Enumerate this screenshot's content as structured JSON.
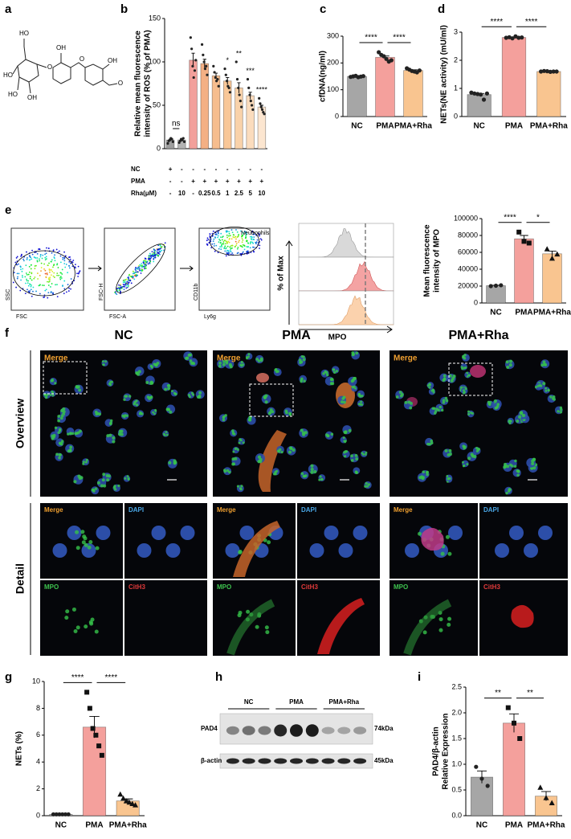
{
  "panel_labels": [
    "a",
    "b",
    "c",
    "d",
    "e",
    "f",
    "g",
    "h",
    "i"
  ],
  "structure": {
    "atoms": [
      "HO",
      "HO",
      "HO",
      "OH",
      "O",
      "OH",
      "O",
      "OH",
      "O"
    ]
  },
  "flow": {
    "plots": [
      {
        "x_label": "FSC",
        "y_label": "SSC"
      },
      {
        "x_label": "FSC-A",
        "y_label": "FSC-H"
      },
      {
        "x_label": "Ly6g",
        "y_label": "CD11b",
        "gate_label": "Neutrophils"
      }
    ],
    "histogram": {
      "x_label": "MPO",
      "y_label": "% of Max"
    }
  },
  "imaging": {
    "columns": [
      "NC",
      "PMA",
      "PMA+Rha"
    ],
    "rows": [
      "Overview",
      "Detail"
    ],
    "overview_label": "Merge",
    "detail_labels": [
      "Merge",
      "DAPI",
      "MPO",
      "CitH3"
    ]
  },
  "western": {
    "groups": [
      "NC",
      "PMA",
      "PMA+Rha"
    ],
    "proteins": [
      "PAD4",
      "β-actin"
    ],
    "sizes": [
      "74kDa",
      "45kDa"
    ]
  },
  "chart_data": [
    {
      "type": "bar",
      "ylabel": [
        "Relative mean fluorescence",
        "intensity of ROS (% of PMA)"
      ],
      "categories": [
        null,
        null,
        null,
        null,
        null,
        null,
        null,
        null,
        null
      ],
      "values": [
        10,
        10,
        102,
        98,
        84,
        78,
        70,
        61,
        48
      ],
      "errors": [
        1,
        1,
        8,
        5,
        3,
        4,
        6,
        4,
        2
      ],
      "points": [
        [
          6,
          9,
          10,
          12,
          11,
          8
        ],
        [
          7,
          9,
          11,
          10,
          12,
          8
        ],
        [
          128,
          115,
          95,
          82,
          90,
          102
        ],
        [
          120,
          108,
          100,
          92,
          95,
          85
        ],
        [
          95,
          88,
          82,
          78,
          80,
          72
        ],
        [
          92,
          85,
          78,
          72,
          70,
          65
        ],
        [
          100,
          80,
          70,
          62,
          55,
          48
        ],
        [
          80,
          70,
          62,
          55,
          50,
          45
        ],
        [
          58,
          52,
          48,
          45,
          42,
          40
        ]
      ],
      "colors": [
        "#9e9e9e",
        "#b3b3b3",
        "#f2a09b",
        "#f4b084",
        "#f6bd8e",
        "#f8c798",
        "#f9d2aa",
        "#fbdcbd",
        "#fce6d0"
      ],
      "marker_shapes": [
        "circle",
        "circle",
        "circle",
        "circle",
        "circle",
        "circle",
        "circle",
        "circle",
        "circle"
      ],
      "ylim": [
        0,
        150
      ],
      "yticks": [
        0,
        50,
        100,
        150
      ],
      "annotations": [
        null,
        null,
        null,
        null,
        null,
        "*",
        "**",
        "***",
        "****"
      ],
      "significance": [
        {
          "from": 0,
          "to": 1,
          "label": "ns"
        }
      ],
      "conditions": [
        {
          "label": "NC",
          "cells": [
            "+",
            "-",
            "-",
            "-",
            "-",
            "-",
            "-",
            "-",
            "-"
          ]
        },
        {
          "label": "PMA",
          "cells": [
            "-",
            "-",
            "+",
            "+",
            "+",
            "+",
            "+",
            "+",
            "+"
          ]
        },
        {
          "label": "Rha(μM)",
          "cells": [
            "-",
            "10",
            "-",
            "0.25",
            "0.5",
            "1",
            "2.5",
            "5",
            "10"
          ]
        }
      ]
    },
    {
      "type": "bar",
      "ylabel": [
        "cfDNA(ng/ml)"
      ],
      "categories": [
        "NC",
        "PMA",
        "PMA+Rha"
      ],
      "values": [
        150,
        221,
        172
      ],
      "errors": [
        1,
        5,
        2.5
      ],
      "points": [
        [
          148,
          150,
          152,
          147,
          149,
          151
        ],
        [
          240,
          230,
          225,
          215,
          205,
          210
        ],
        [
          180,
          175,
          170,
          168,
          165,
          172
        ]
      ],
      "colors": [
        "#a6a6a6",
        "#f4a09c",
        "#f9c590"
      ],
      "marker_shapes": [
        "circle",
        "circle",
        "circle"
      ],
      "ylim": [
        0,
        300
      ],
      "yticks": [
        0,
        100,
        200,
        300
      ],
      "significance": [
        {
          "from": 0,
          "to": 1,
          "label": "****"
        },
        {
          "from": 1,
          "to": 2,
          "label": "****"
        }
      ]
    },
    {
      "type": "bar",
      "ylabel": [
        "NETs(NE activity) (mU/ml)"
      ],
      "categories": [
        "NC",
        "PMA",
        "PMA+Rha"
      ],
      "values": [
        0.78,
        2.81,
        1.6
      ],
      "errors": [
        0.04,
        0.02,
        0.01
      ],
      "points": [
        [
          0.85,
          0.82,
          0.8,
          0.78,
          0.6,
          0.82
        ],
        [
          2.8,
          2.82,
          2.78,
          2.85,
          2.8,
          2.81
        ],
        [
          1.6,
          1.62,
          1.61,
          1.59,
          1.6,
          1.6
        ]
      ],
      "colors": [
        "#a6a6a6",
        "#f4a09c",
        "#f9c590"
      ],
      "marker_shapes": [
        "circle",
        "circle",
        "circle"
      ],
      "ylim": [
        0,
        3
      ],
      "yticks": [
        0,
        1,
        2,
        3
      ],
      "significance": [
        {
          "from": 0,
          "to": 1,
          "label": "****"
        },
        {
          "from": 1,
          "to": 2,
          "label": "****"
        }
      ]
    },
    {
      "type": "bar",
      "ylabel": [
        "Mean fluorescence",
        "intensity of MPO"
      ],
      "categories": [
        "NC",
        "PMA",
        "PMA+Rha"
      ],
      "values": [
        20500,
        76000,
        58300
      ],
      "errors": [
        500,
        4000,
        3200
      ],
      "points": [
        [
          20000,
          20500,
          21000
        ],
        [
          84000,
          73000,
          71000
        ],
        [
          64000,
          53000,
          58000
        ]
      ],
      "colors": [
        "#a6a6a6",
        "#f4a09c",
        "#f9c590"
      ],
      "marker_shapes": [
        "circle",
        "square",
        "triangle"
      ],
      "ylim": [
        0,
        100000
      ],
      "yticks": [
        0,
        20000,
        40000,
        60000,
        80000,
        100000
      ],
      "significance": [
        {
          "from": 0,
          "to": 1,
          "label": "****"
        },
        {
          "from": 1,
          "to": 2,
          "label": "*"
        }
      ]
    },
    {
      "type": "bar",
      "ylabel": [
        "NETs (%)"
      ],
      "categories": [
        "NC",
        "PMA",
        "PMA+Rha"
      ],
      "values": [
        0.1,
        6.6,
        1.1
      ],
      "errors": [
        0.01,
        0.8,
        0.15
      ],
      "points": [
        [
          0.1,
          0.1,
          0.1,
          0.1,
          0.1,
          0.1
        ],
        [
          9.2,
          8.0,
          6.5,
          6.0,
          5.2,
          4.5
        ],
        [
          1.6,
          1.3,
          1.1,
          1.0,
          0.9,
          0.8
        ]
      ],
      "colors": [
        "#a6a6a6",
        "#f4a09c",
        "#f9c590"
      ],
      "marker_shapes": [
        "circle",
        "square",
        "triangle"
      ],
      "ylim": [
        0,
        10
      ],
      "yticks": [
        0,
        2,
        4,
        6,
        8,
        10
      ],
      "significance": [
        {
          "from": 0,
          "to": 1,
          "label": "****"
        },
        {
          "from": 1,
          "to": 2,
          "label": "****"
        }
      ]
    },
    {
      "type": "bar",
      "ylabel": [
        "PAD4/β-actin",
        "Relative Expression"
      ],
      "categories": [
        "NC",
        "PMA",
        "PMA+Rha"
      ],
      "values": [
        0.75,
        1.8,
        0.38
      ],
      "errors": [
        0.12,
        0.18,
        0.09
      ],
      "points": [
        [
          0.95,
          0.72,
          0.58
        ],
        [
          2.1,
          1.8,
          1.5
        ],
        [
          0.55,
          0.35,
          0.25
        ]
      ],
      "colors": [
        "#a6a6a6",
        "#f4a09c",
        "#f9c590"
      ],
      "marker_shapes": [
        "circle",
        "square",
        "triangle"
      ],
      "ylim": [
        0,
        2.5
      ],
      "yticks": [
        {
          "value": 0,
          "label": "0.0"
        },
        0.5,
        {
          "value": 1,
          "label": "1.0"
        },
        1.5,
        {
          "value": 2,
          "label": "2.0"
        },
        2.5
      ],
      "significance": [
        {
          "from": 0,
          "to": 1,
          "label": "**"
        },
        {
          "from": 1,
          "to": 2,
          "label": "**"
        }
      ]
    }
  ]
}
